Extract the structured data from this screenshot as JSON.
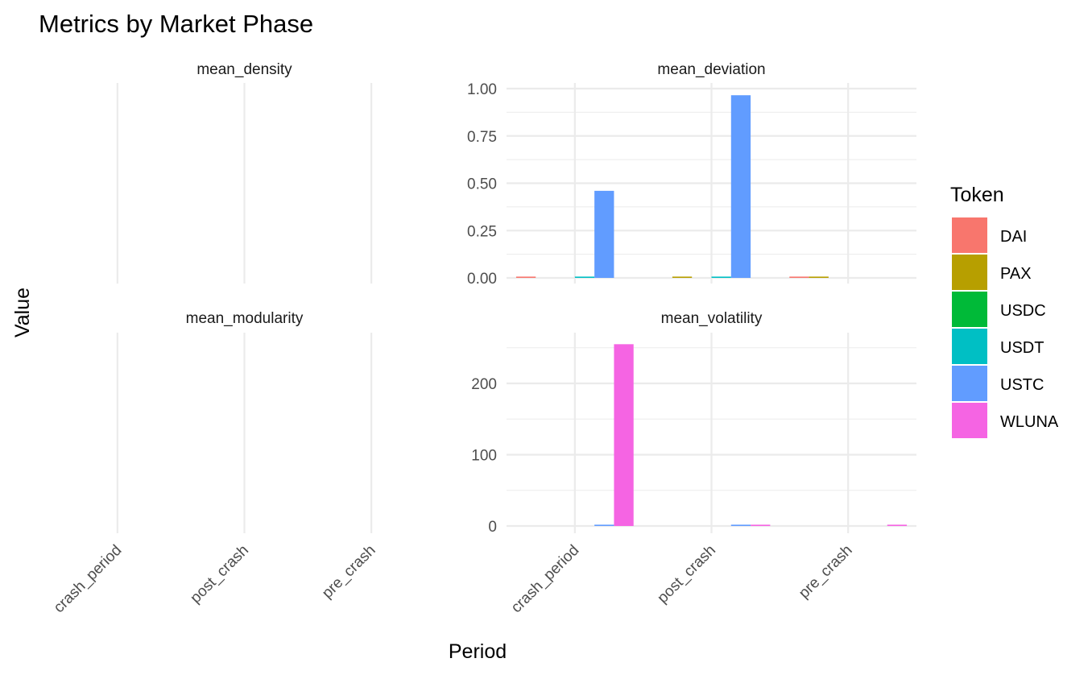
{
  "chart_data": {
    "type": "bar",
    "title": "Metrics by Market Phase",
    "xlabel": "Period",
    "ylabel": "Value",
    "categories": [
      "crash_period",
      "post_crash",
      "pre_crash"
    ],
    "legend": {
      "title": "Token",
      "placement": "right",
      "items": [
        {
          "name": "DAI",
          "color": "#F8766D"
        },
        {
          "name": "PAX",
          "color": "#B79F00"
        },
        {
          "name": "USDC",
          "color": "#00BA38"
        },
        {
          "name": "USDT",
          "color": "#00BFC4"
        },
        {
          "name": "USTC",
          "color": "#619CFF"
        },
        {
          "name": "WLUNA",
          "color": "#F564E3"
        }
      ]
    },
    "facets": [
      {
        "name": "mean_density",
        "y_ticks": [],
        "series": []
      },
      {
        "name": "mean_deviation",
        "ylim": [
          0,
          1.0
        ],
        "y_ticks": [
          "1.00",
          "0.75",
          "0.50",
          "0.25",
          "0.00"
        ],
        "series": [
          {
            "name": "DAI",
            "values": [
              0.002,
              null,
              0.002
            ]
          },
          {
            "name": "PAX",
            "values": [
              null,
              0.002,
              0.002
            ]
          },
          {
            "name": "USDT",
            "values": [
              0.002,
              0.002,
              null
            ]
          },
          {
            "name": "USTC",
            "values": [
              0.46,
              0.965,
              null
            ]
          }
        ]
      },
      {
        "name": "mean_modularity",
        "y_ticks": [],
        "series": []
      },
      {
        "name": "mean_volatility",
        "ylim": [
          0,
          255
        ],
        "y_ticks": [
          "200",
          "100",
          "0"
        ],
        "series": [
          {
            "name": "USTC",
            "values": [
              1.0,
              0.8,
              null
            ]
          },
          {
            "name": "WLUNA",
            "values": [
              255,
              0.5,
              0.3
            ]
          }
        ]
      }
    ]
  }
}
